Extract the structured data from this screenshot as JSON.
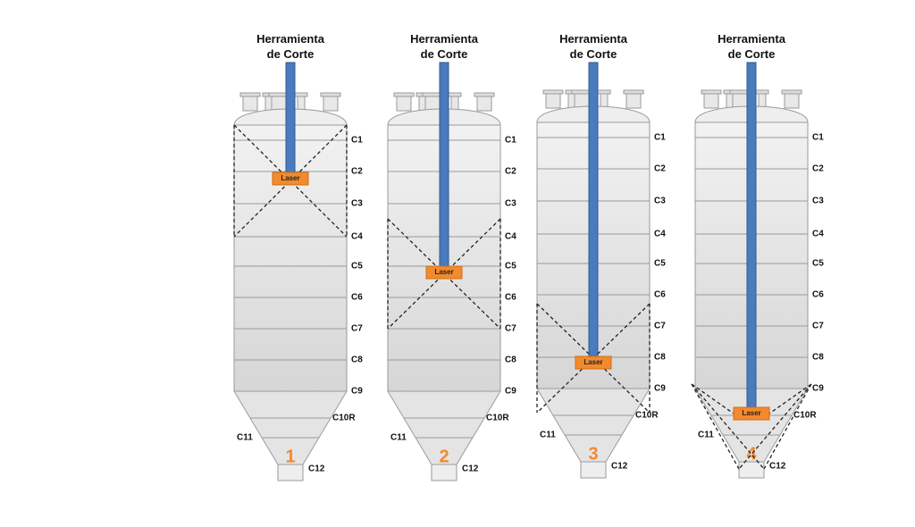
{
  "panels": [
    {
      "number": "1",
      "title": [
        "Herramienta",
        "de Corte"
      ],
      "laser": "Laser",
      "rings": [
        "C1",
        "C2",
        "C3",
        "C4",
        "C5",
        "C6",
        "C7",
        "C8",
        "C9",
        "C10R",
        "C11",
        "C12"
      ]
    },
    {
      "number": "2",
      "title": [
        "Herramienta",
        "de Corte"
      ],
      "laser": "Laser",
      "rings": [
        "C1",
        "C2",
        "C3",
        "C4",
        "C5",
        "C6",
        "C7",
        "C8",
        "C9",
        "C10R",
        "C11",
        "C12"
      ]
    },
    {
      "number": "3",
      "title": [
        "Herramienta",
        "de Corte"
      ],
      "laser": "Laser",
      "rings": [
        "C1",
        "C2",
        "C3",
        "C4",
        "C5",
        "C6",
        "C7",
        "C8",
        "C9",
        "C10R",
        "C11",
        "C12"
      ]
    },
    {
      "number": "4",
      "title": [
        "Herramienta",
        "de Corte"
      ],
      "laser": "Laser",
      "rings": [
        "C1",
        "C2",
        "C3",
        "C4",
        "C5",
        "C6",
        "C7",
        "C8",
        "C9",
        "C10R",
        "C11",
        "C12"
      ]
    }
  ]
}
